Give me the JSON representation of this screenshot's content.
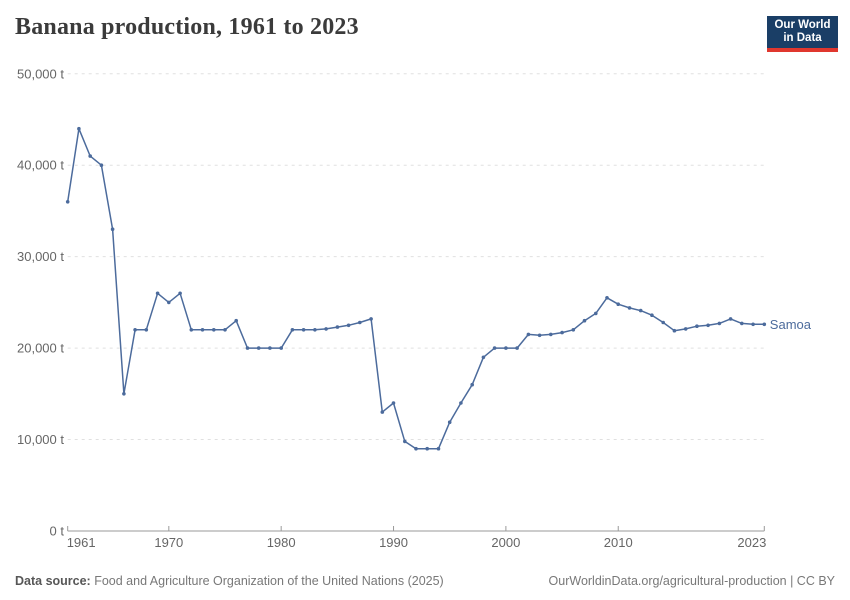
{
  "header": {
    "title": "Banana production, 1961 to 2023"
  },
  "logo": {
    "line1": "Our World",
    "line2": "in Data",
    "bg_color": "#1a3e66",
    "stripe_color": "#e0372e"
  },
  "footer": {
    "source_prefix": "Data source:",
    "source_text": " Food and Agriculture Organization of the United Nations (2025)",
    "credit": "OurWorldinData.org/agricultural-production | CC BY"
  },
  "chart_data": {
    "type": "line",
    "title": "Banana production, 1961 to 2023",
    "unit": "t",
    "xlim": [
      1961,
      2023
    ],
    "ylim": [
      0,
      50000
    ],
    "grid": "dashed-horizontal",
    "legend_position": "end-of-line-label",
    "yticks": [
      {
        "value": 0,
        "label": "0 t"
      },
      {
        "value": 10000,
        "label": "10,000 t"
      },
      {
        "value": 20000,
        "label": "20,000 t"
      },
      {
        "value": 30000,
        "label": "30,000 t"
      },
      {
        "value": 40000,
        "label": "40,000 t"
      },
      {
        "value": 50000,
        "label": "50,000 t"
      }
    ],
    "xticks": [
      {
        "value": 1961,
        "label": "1961"
      },
      {
        "value": 1970,
        "label": "1970"
      },
      {
        "value": 1980,
        "label": "1980"
      },
      {
        "value": 1990,
        "label": "1990"
      },
      {
        "value": 2000,
        "label": "2000"
      },
      {
        "value": 2010,
        "label": "2010"
      },
      {
        "value": 2023,
        "label": "2023"
      }
    ],
    "series": [
      {
        "name": "Samoa",
        "color": "#4c6b9c",
        "x": [
          1961,
          1962,
          1963,
          1964,
          1965,
          1966,
          1967,
          1968,
          1969,
          1970,
          1971,
          1972,
          1973,
          1974,
          1975,
          1976,
          1977,
          1978,
          1979,
          1980,
          1981,
          1982,
          1983,
          1984,
          1985,
          1986,
          1987,
          1988,
          1989,
          1990,
          1991,
          1992,
          1993,
          1994,
          1995,
          1996,
          1997,
          1998,
          1999,
          2000,
          2001,
          2002,
          2003,
          2004,
          2005,
          2006,
          2007,
          2008,
          2009,
          2010,
          2011,
          2012,
          2013,
          2014,
          2015,
          2016,
          2017,
          2018,
          2019,
          2020,
          2021,
          2022,
          2023
        ],
        "values": [
          36000,
          44000,
          41000,
          40000,
          33000,
          15000,
          22000,
          22000,
          26000,
          25000,
          26000,
          22000,
          22000,
          22000,
          22000,
          23000,
          20000,
          20000,
          20000,
          20000,
          22000,
          22000,
          22000,
          22100,
          22300,
          22500,
          22800,
          23200,
          13000,
          14000,
          9800,
          9000,
          9000,
          9000,
          11900,
          14000,
          16000,
          19000,
          20000,
          20000,
          20000,
          21500,
          21400,
          21500,
          21700,
          22000,
          23000,
          23800,
          25500,
          24800,
          24400,
          24100,
          23600,
          22800,
          21900,
          22100,
          22400,
          22500,
          22700,
          23200,
          22700,
          22600,
          22600
        ]
      }
    ]
  }
}
